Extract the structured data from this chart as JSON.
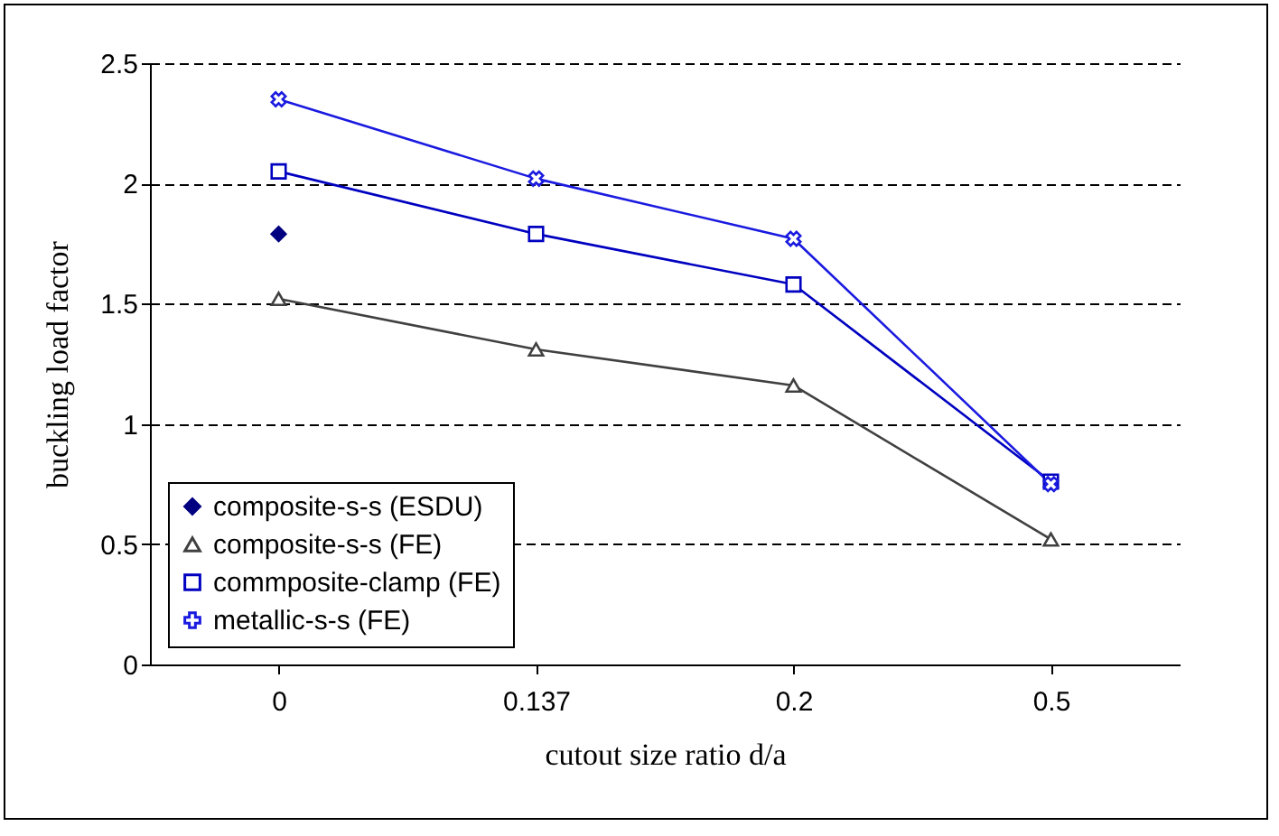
{
  "chart_data": {
    "type": "line",
    "xlabel": "cutout size ratio d/a",
    "ylabel": "buckling load factor",
    "categories": [
      "0",
      "0.137",
      "0.2",
      "0.5"
    ],
    "series": [
      {
        "name": "composite-s-s (ESDU)",
        "color": "#000080",
        "marker": "diamond",
        "values": [
          1.79,
          null,
          null,
          null
        ]
      },
      {
        "name": "composite-s-s (FE)",
        "color": "#404040",
        "marker": "triangle",
        "values": [
          1.52,
          1.31,
          1.16,
          0.52
        ]
      },
      {
        "name": "commposite-clamp (FE)",
        "color": "#0000c0",
        "marker": "square",
        "values": [
          2.05,
          1.79,
          1.58,
          0.76
        ]
      },
      {
        "name": "metallic-s-s (FE)",
        "color": "#1a1ae0",
        "marker": "cross",
        "values": [
          2.35,
          2.02,
          1.77,
          0.75
        ]
      }
    ],
    "ylim": [
      0,
      2.5
    ],
    "yticks": [
      0,
      0.5,
      1,
      1.5,
      2,
      2.5
    ],
    "grid": "y",
    "legend": "bottom left",
    "line_style": "solid"
  }
}
